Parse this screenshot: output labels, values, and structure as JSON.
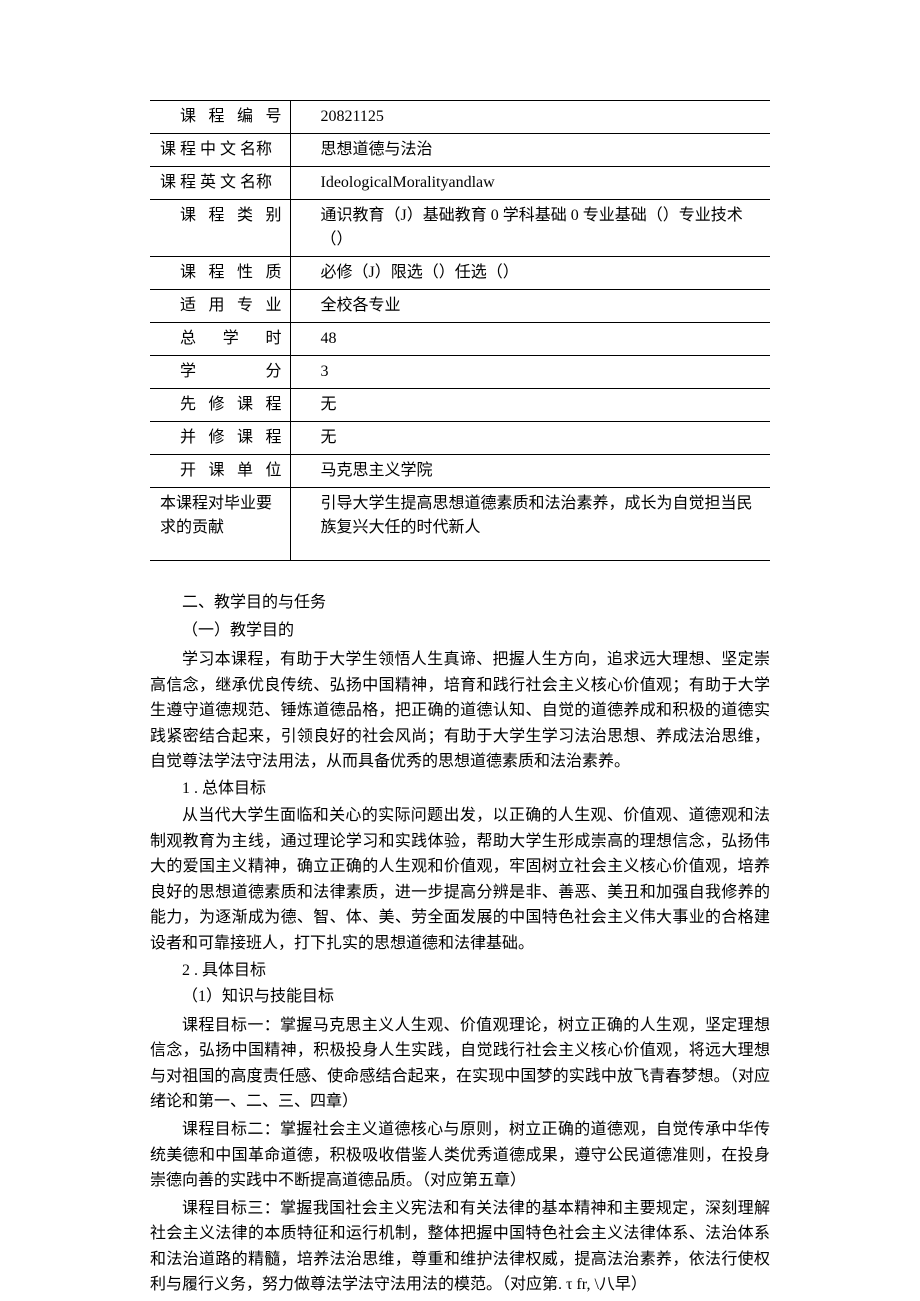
{
  "table": {
    "rows": [
      {
        "label": "课程编号",
        "value": "20821125",
        "labelClass": "label-col"
      },
      {
        "label": "课 程 中 文 名称",
        "value": "思想道德与法治",
        "labelClass": "label-col-2"
      },
      {
        "label": "课 程 英 文 名称",
        "value": "IdeologicalMoralityandlaw",
        "labelClass": "label-col-2"
      },
      {
        "label": "课程类别",
        "value": "通识教育（J）基础教育 0 学科基础 0 专业基础（）专业技术（）",
        "labelClass": "label-col"
      },
      {
        "label": "课程性质",
        "value": "必修（J）限选（）任选（）",
        "labelClass": "label-col"
      },
      {
        "label": "适用专业",
        "value": "全校各专业",
        "labelClass": "label-col"
      },
      {
        "label": "总学时",
        "value": "48",
        "labelClass": "label-col"
      },
      {
        "label": "学分",
        "value": "3",
        "labelClass": "label-col"
      },
      {
        "label": "先修课程",
        "value": "无",
        "labelClass": "label-col"
      },
      {
        "label": "并修课程",
        "value": "无",
        "labelClass": "label-col"
      },
      {
        "label": "开课单位",
        "value": "马克思主义学院",
        "labelClass": "label-col"
      },
      {
        "label": "本课程对毕业要求的贡献",
        "value": "引导大学生提高思想道德素质和法治素养，成长为自觉担当民族复兴大任的时代新人",
        "labelClass": "label-col-2"
      }
    ]
  },
  "sections": {
    "title2": "二、教学目的与任务",
    "sub1": "（一）教学目的",
    "para1": "学习本课程，有助于大学生领悟人生真谛、把握人生方向，追求远大理想、坚定崇高信念，继承优良传统、弘扬中国精神，培育和践行社会主义核心价值观；有助于大学生遵守道德规范、锤炼道德品格，把正确的道德认知、自觉的道德养成和积极的道德实践紧密结合起来，引领良好的社会风尚；有助于大学生学习法治思想、养成法治思维，自觉尊法学法守法用法，从而具备优秀的思想道德素质和法治素养。",
    "num1": "1 . 总体目标",
    "para2": "从当代大学生面临和关心的实际问题出发，以正确的人生观、价值观、道德观和法制观教育为主线，通过理论学习和实践体验，帮助大学生形成崇高的理想信念，弘扬伟大的爱国主义精神，确立正确的人生观和价值观，牢固树立社会主义核心价值观，培养良好的思想道德素质和法律素质，进一步提高分辨是非、善恶、美丑和加强自我修养的能力，为逐渐成为德、智、体、美、劳全面发展的中国特色社会主义伟大事业的合格建设者和可靠接班人，打下扎实的思想道德和法律基础。",
    "num2": "2 . 具体目标",
    "sub2": "（1）知识与技能目标",
    "para3": "课程目标一：掌握马克思主义人生观、价值观理论，树立正确的人生观，坚定理想信念，弘扬中国精神，积极投身人生实践，自觉践行社会主义核心价值观，将远大理想与对祖国的高度责任感、使命感结合起来，在实现中国梦的实践中放飞青春梦想。（对应绪论和第一、二、三、四章）",
    "para4": "课程目标二：掌握社会主义道德核心与原则，树立正确的道德观，自觉传承中华传统美德和中国革命道德，积极吸收借鉴人类优秀道德成果，遵守公民道德准则，在投身崇德向善的实践中不断提高道德品质。（对应第五章）",
    "para5": "课程目标三：掌握我国社会主义宪法和有关法律的基本精神和主要规定，深刻理解社会主义法律的本质特征和运行机制，整体把握中国特色社会主义法律体系、法治体系和法治道路的精髓，培养法治思维，尊重和维护法律权威，提高法治素养，依法行使权利与履行义务，努力做尊法学法守法用法的模范。（对应第. τ fr, \\八早）"
  }
}
